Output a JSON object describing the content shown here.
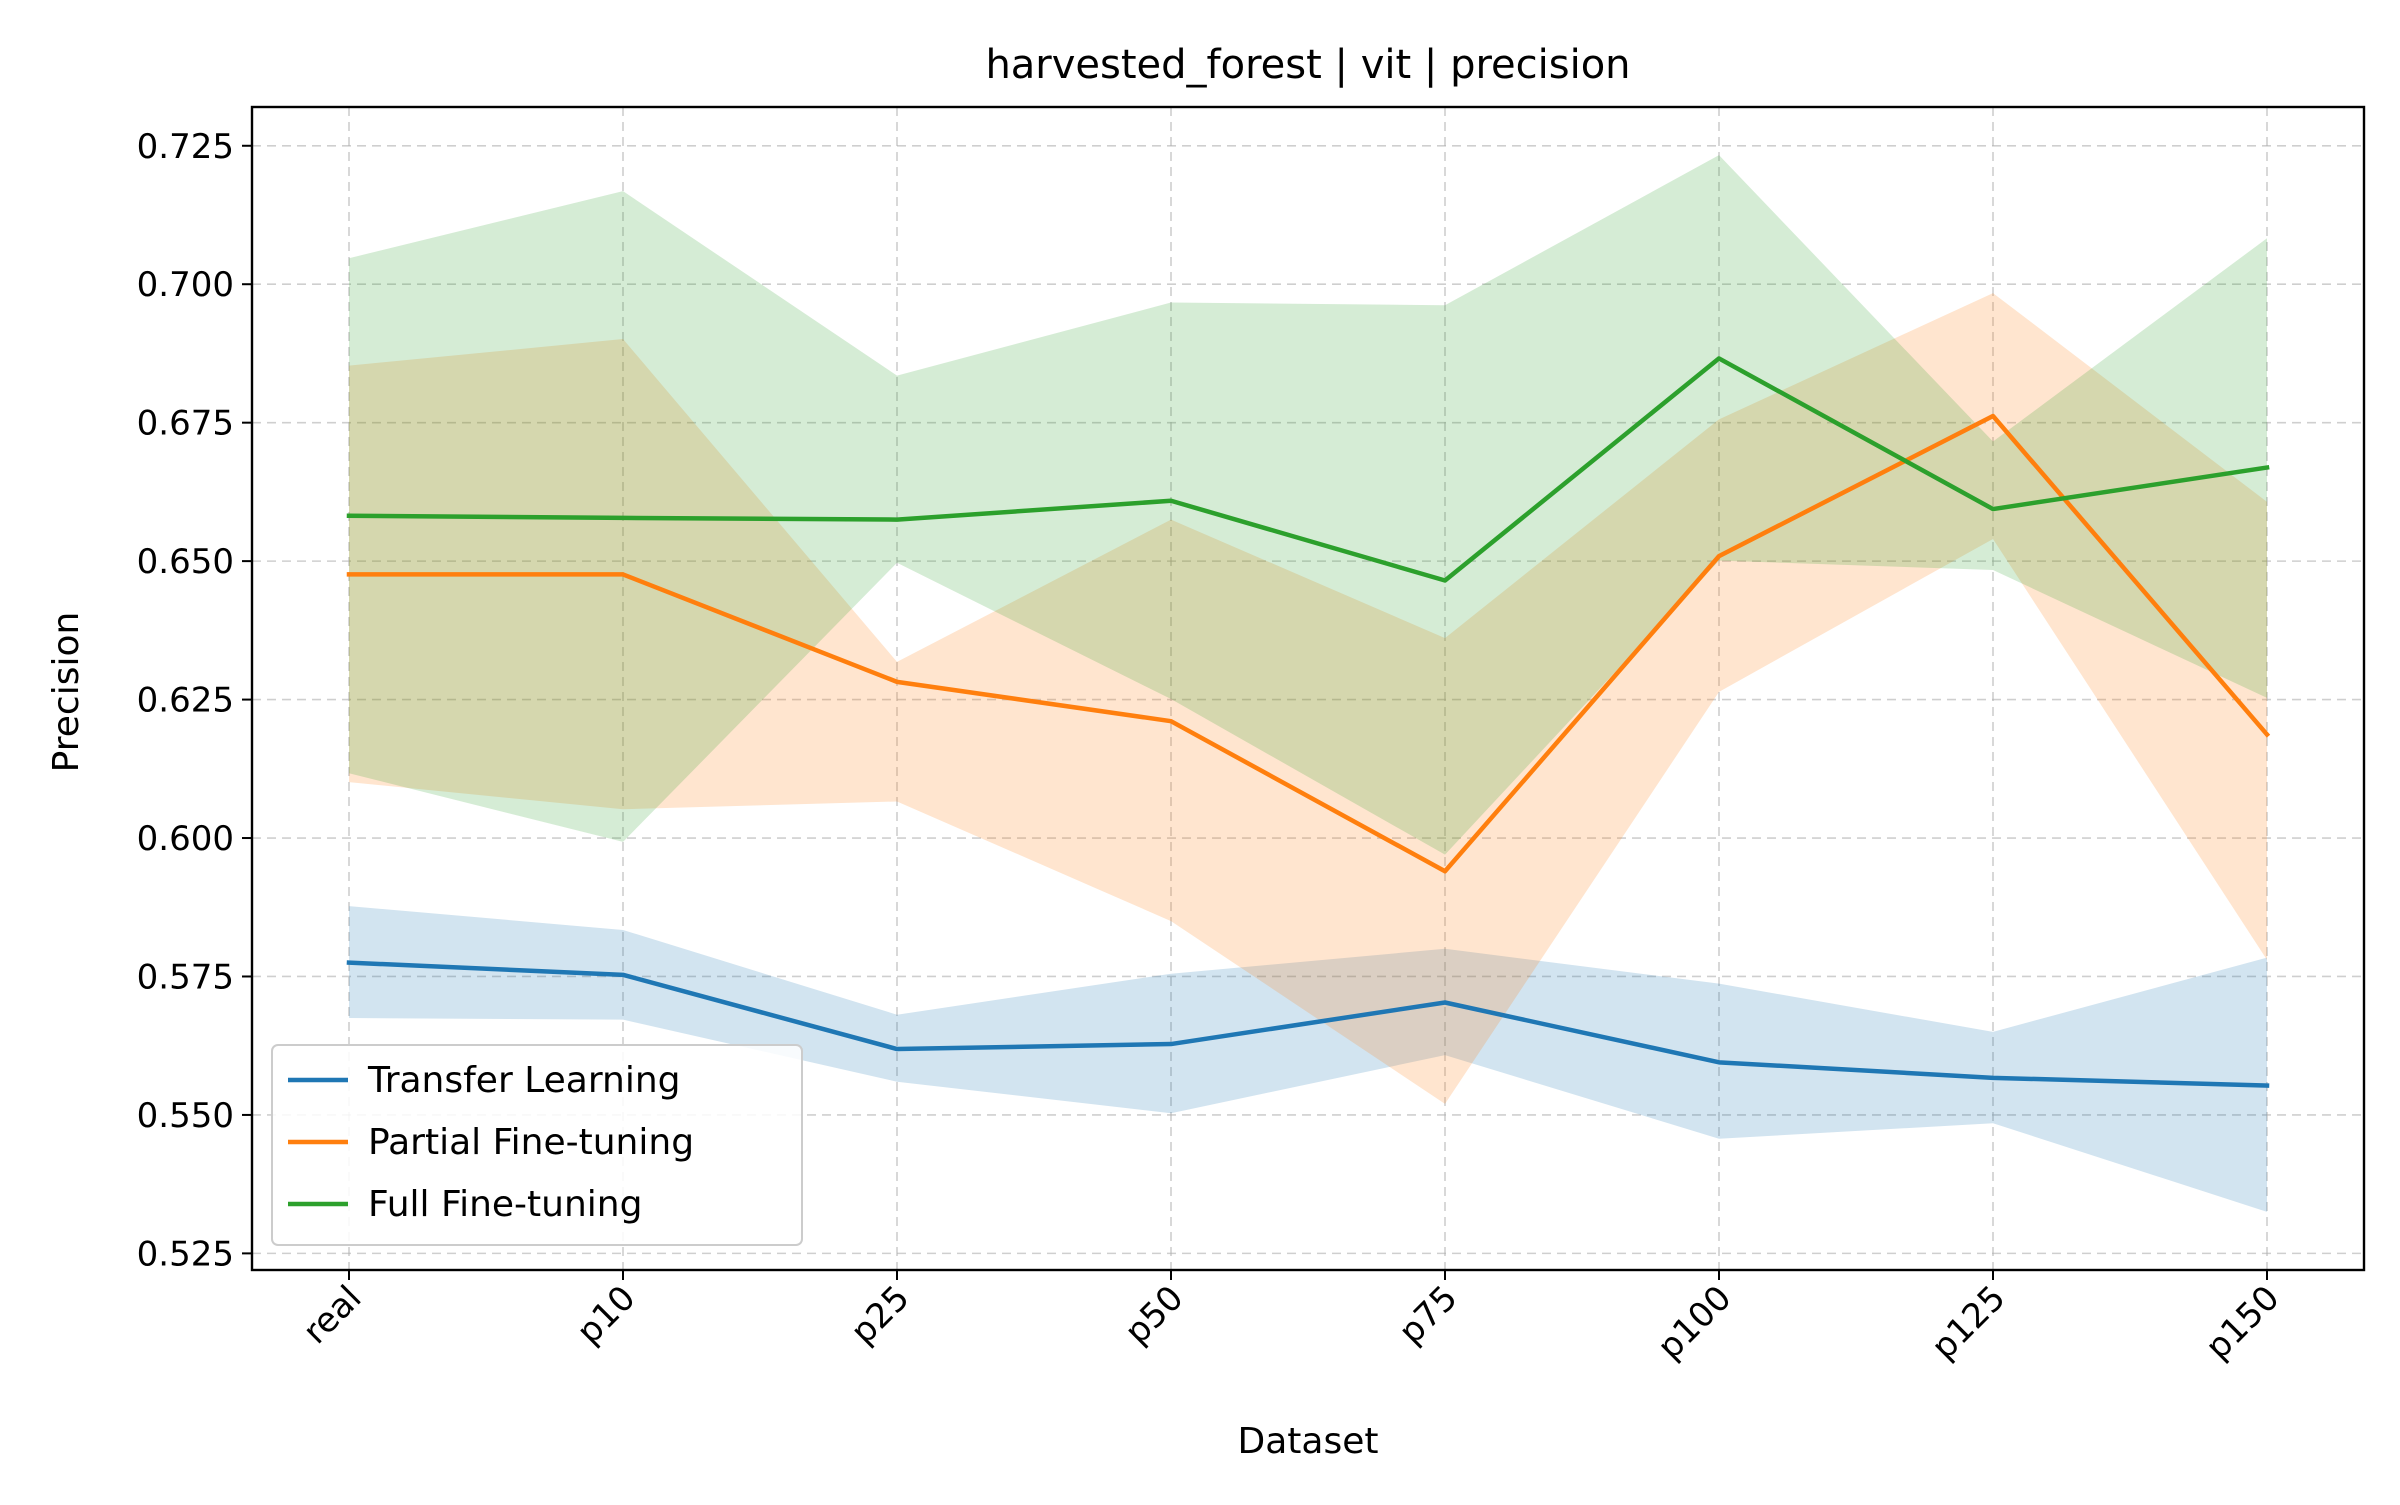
{
  "chart_data": {
    "type": "line",
    "title": "harvested_forest | vit | precision",
    "xlabel": "Dataset",
    "ylabel": "Precision",
    "categories": [
      "real",
      "p10",
      "p25",
      "p50",
      "p75",
      "p100",
      "p125",
      "p150"
    ],
    "ylim": [
      0.522,
      0.732
    ],
    "yticks": [
      0.525,
      0.55,
      0.575,
      0.6,
      0.625,
      0.65,
      0.675,
      0.7,
      0.725
    ],
    "ytick_labels": [
      "0.525",
      "0.550",
      "0.575",
      "0.600",
      "0.625",
      "0.650",
      "0.675",
      "0.700",
      "0.725"
    ],
    "grid": true,
    "legend_position": "lower-left",
    "series": [
      {
        "name": "Transfer Learning",
        "color": "#1f77b4",
        "values": [
          0.5775,
          0.5753,
          0.5619,
          0.5628,
          0.5703,
          0.5595,
          0.5567,
          0.5553
        ],
        "lower": [
          0.5675,
          0.5672,
          0.556,
          0.5503,
          0.5608,
          0.5457,
          0.5485,
          0.5325
        ],
        "upper": [
          0.5877,
          0.5834,
          0.5681,
          0.5755,
          0.58,
          0.5737,
          0.565,
          0.5784
        ]
      },
      {
        "name": "Partial Fine-tuning",
        "color": "#ff7f0e",
        "values": [
          0.6476,
          0.6476,
          0.6282,
          0.6211,
          0.594,
          0.6509,
          0.6762,
          0.6187
        ],
        "lower": [
          0.6101,
          0.6052,
          0.6066,
          0.585,
          0.552,
          0.6264,
          0.654,
          0.578
        ],
        "upper": [
          0.6853,
          0.6901,
          0.6318,
          0.6575,
          0.6361,
          0.6756,
          0.6984,
          0.6607
        ]
      },
      {
        "name": "Full Fine-tuning",
        "color": "#2ca02c",
        "values": [
          0.6582,
          0.6578,
          0.6575,
          0.6609,
          0.6465,
          0.6866,
          0.6594,
          0.6669
        ],
        "lower": [
          0.6117,
          0.5993,
          0.6497,
          0.6251,
          0.597,
          0.6501,
          0.6484,
          0.6253
        ],
        "upper": [
          0.7047,
          0.7168,
          0.6835,
          0.6967,
          0.6962,
          0.7233,
          0.6716,
          0.7083
        ]
      }
    ]
  }
}
